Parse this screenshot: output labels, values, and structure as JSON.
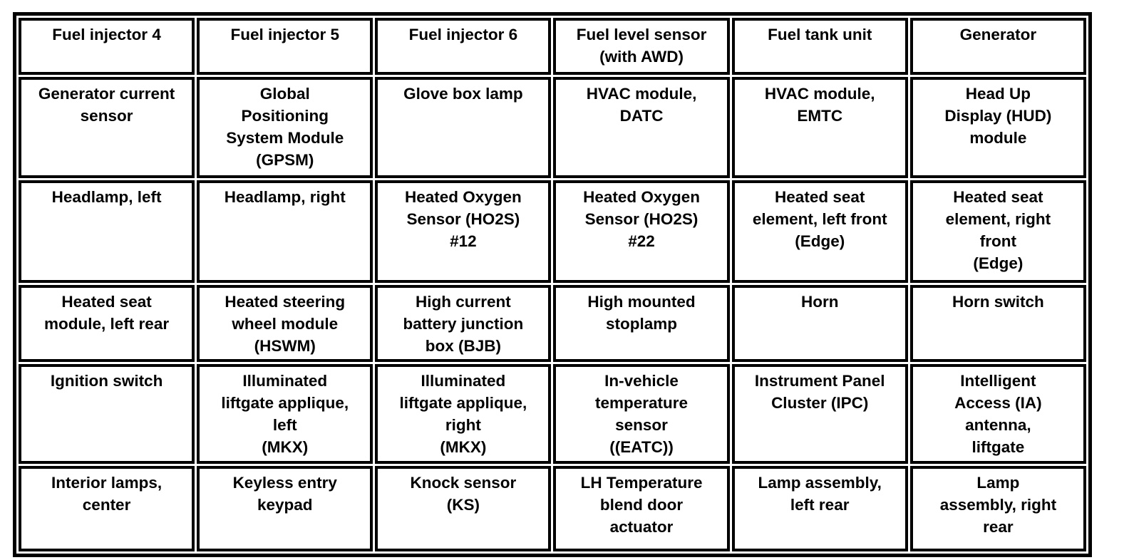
{
  "rows": [
    [
      "Fuel injector 4",
      "Fuel injector 5",
      "Fuel injector 6",
      "Fuel level sensor\n(with AWD)",
      "Fuel tank unit",
      "Generator"
    ],
    [
      "Generator current\nsensor",
      "Global\nPositioning\nSystem Module\n(GPSM)",
      "Glove box lamp",
      "HVAC module,\nDATC",
      "HVAC module,\nEMTC",
      "Head Up\nDisplay (HUD)\nmodule"
    ],
    [
      "Headlamp, left",
      "Headlamp, right",
      "Heated Oxygen\nSensor (HO2S)\n#12",
      "Heated Oxygen\nSensor (HO2S)\n#22",
      "Heated seat\nelement, left front\n(Edge)",
      "Heated seat\nelement, right\nfront\n(Edge)"
    ],
    [
      "Heated seat\nmodule, left rear",
      "Heated steering\nwheel module\n(HSWM)",
      "High current\nbattery junction\nbox (BJB)",
      "High mounted\nstoplamp",
      "Horn",
      "Horn switch"
    ],
    [
      "Ignition switch",
      "Illuminated\nliftgate applique,\nleft\n(MKX)",
      "Illuminated\nliftgate applique,\nright\n(MKX)",
      "In-vehicle\ntemperature\nsensor\n((EATC))",
      "Instrument Panel\nCluster (IPC)",
      "Intelligent\nAccess (IA)\nantenna,\nliftgate"
    ],
    [
      "Interior lamps,\ncenter",
      "Keyless entry\nkeypad",
      "Knock sensor\n(KS)",
      "LH Temperature\nblend door\nactuator",
      "Lamp assembly,\nleft rear",
      "Lamp\nassembly, right\nrear"
    ]
  ]
}
